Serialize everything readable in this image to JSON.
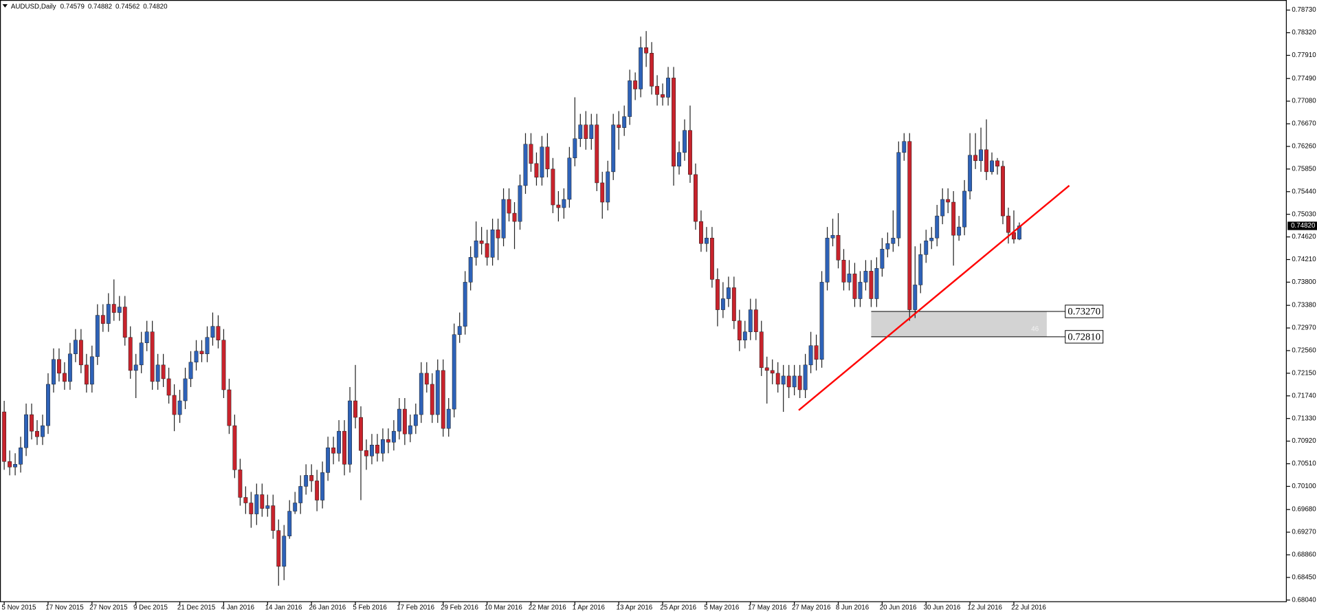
{
  "chart_data": {
    "type": "candlestick",
    "title": "AUDUSD,Daily",
    "quote": [
      0.74579,
      0.74882,
      0.74562,
      {
        "value": 0.7482,
        "label": "0.74820"
      }
    ],
    "up_color": "#2e62b8",
    "down_color": "#c8232c",
    "ylim": [
      0.6801,
      0.78867
    ],
    "yticks": [
      {
        "value": 0.7873,
        "label": "0.78730"
      },
      {
        "value": 0.7832,
        "label": "0.78320"
      },
      {
        "value": 0.7791,
        "label": "0.77910"
      },
      {
        "value": 0.7749,
        "label": "0.77490"
      },
      {
        "value": 0.7708,
        "label": "0.77080"
      },
      {
        "value": 0.7667,
        "label": "0.76670"
      },
      {
        "value": 0.7626,
        "label": "0.76260"
      },
      {
        "value": 0.7585,
        "label": "0.75850"
      },
      {
        "value": 0.7544,
        "label": "0.75440"
      },
      {
        "value": 0.7503,
        "label": "0.75030"
      },
      {
        "value": 0.7462,
        "label": "0.74620"
      },
      {
        "value": 0.7421,
        "label": "0.74210"
      },
      {
        "value": 0.738,
        "label": "0.73800"
      },
      {
        "value": 0.7338,
        "label": "0.73380"
      },
      {
        "value": 0.7297,
        "label": "0.72970"
      },
      {
        "value": 0.7256,
        "label": "0.72560"
      },
      {
        "value": 0.7215,
        "label": "0.72150"
      },
      {
        "value": 0.7174,
        "label": "0.71740"
      },
      {
        "value": 0.7133,
        "label": "0.71330"
      },
      {
        "value": 0.7092,
        "label": "0.70920"
      },
      {
        "value": 0.7051,
        "label": "0.70510"
      },
      {
        "value": 0.701,
        "label": "0.70100"
      },
      {
        "value": 0.6968,
        "label": "0.69680"
      },
      {
        "value": 0.6927,
        "label": "0.69270"
      },
      {
        "value": 0.6886,
        "label": "0.68860"
      },
      {
        "value": 0.6845,
        "label": "0.68450"
      },
      {
        "value": 0.6804,
        "label": "0.68040"
      }
    ],
    "categories": [
      "5 Nov 2015",
      null,
      null,
      null,
      null,
      null,
      null,
      null,
      "17 Nov 2015",
      null,
      null,
      null,
      null,
      null,
      null,
      null,
      "27 Nov 2015",
      null,
      null,
      null,
      null,
      null,
      null,
      null,
      "9 Dec 2015",
      null,
      null,
      null,
      null,
      null,
      null,
      null,
      "21 Dec 2015",
      null,
      null,
      null,
      null,
      null,
      null,
      null,
      "4 Jan 2016",
      null,
      null,
      null,
      null,
      null,
      null,
      null,
      "14 Jan 2016",
      null,
      null,
      null,
      null,
      null,
      null,
      null,
      "26 Jan 2016",
      null,
      null,
      null,
      null,
      null,
      null,
      null,
      "5 Feb 2016",
      null,
      null,
      null,
      null,
      null,
      null,
      null,
      "17 Feb 2016",
      null,
      null,
      null,
      null,
      null,
      null,
      null,
      "29 Feb 2016",
      null,
      null,
      null,
      null,
      null,
      null,
      null,
      "10 Mar 2016",
      null,
      null,
      null,
      null,
      null,
      null,
      null,
      "22 Mar 2016",
      null,
      null,
      null,
      null,
      null,
      null,
      null,
      "1 Apr 2016",
      null,
      null,
      null,
      null,
      null,
      null,
      null,
      "13 Apr 2016",
      null,
      null,
      null,
      null,
      null,
      null,
      null,
      "25 Apr 2016",
      null,
      null,
      null,
      null,
      null,
      null,
      null,
      "5 May 2016",
      null,
      null,
      null,
      null,
      null,
      null,
      null,
      "17 May 2016",
      null,
      null,
      null,
      null,
      null,
      null,
      null,
      "27 May 2016",
      null,
      null,
      null,
      null,
      null,
      null,
      null,
      "8 Jun 2016",
      null,
      null,
      null,
      null,
      null,
      null,
      null,
      "20 Jun 2016",
      null,
      null,
      null,
      null,
      null,
      null,
      null,
      "30 Jun 2016",
      null,
      null,
      null,
      null,
      null,
      null,
      null,
      "12 Jul 2016",
      null,
      null,
      null,
      null,
      null,
      null,
      null,
      "22 Jul 2016",
      null
    ],
    "open": [
      0.7145,
      0.7055,
      0.7045,
      0.705,
      0.708,
      0.714,
      0.711,
      0.71,
      0.712,
      0.7195,
      0.724,
      0.7215,
      0.72,
      0.725,
      0.7275,
      0.723,
      0.7195,
      0.7245,
      0.732,
      0.7305,
      0.734,
      0.7325,
      0.7335,
      0.728,
      0.722,
      0.723,
      0.727,
      0.729,
      0.72,
      0.723,
      0.7205,
      0.7175,
      0.714,
      0.7165,
      0.7205,
      0.7235,
      0.7255,
      0.725,
      0.728,
      0.73,
      0.7275,
      0.7185,
      0.712,
      0.704,
      0.699,
      0.698,
      0.696,
      0.6995,
      0.697,
      0.6975,
      0.693,
      0.6865,
      0.692,
      0.6965,
      0.698,
      0.701,
      0.703,
      0.702,
      0.6985,
      0.7035,
      0.708,
      0.707,
      0.711,
      0.705,
      0.7165,
      0.7135,
      0.7075,
      0.7065,
      0.7085,
      0.707,
      0.7095,
      0.709,
      0.711,
      0.715,
      0.7105,
      0.712,
      0.714,
      0.7215,
      0.7195,
      0.714,
      0.722,
      0.7115,
      0.715,
      0.7285,
      0.73,
      0.738,
      0.7425,
      0.7455,
      0.745,
      0.7425,
      0.7475,
      0.746,
      0.753,
      0.7505,
      0.749,
      0.7555,
      0.763,
      0.7595,
      0.757,
      0.7625,
      0.7585,
      0.752,
      0.7515,
      0.753,
      0.7605,
      0.764,
      0.7665,
      0.764,
      0.7665,
      0.756,
      0.7525,
      0.758,
      0.7665,
      0.766,
      0.768,
      0.7745,
      0.773,
      0.7805,
      0.7795,
      0.7735,
      0.772,
      0.7715,
      0.775,
      0.759,
      0.7615,
      0.7655,
      0.7575,
      0.749,
      0.745,
      0.746,
      0.7385,
      0.733,
      0.735,
      0.737,
      0.731,
      0.7275,
      0.729,
      0.733,
      0.729,
      0.7225,
      0.722,
      0.7215,
      0.7195,
      0.721,
      0.719,
      0.721,
      0.7185,
      0.723,
      0.7265,
      0.724,
      0.738,
      0.746,
      0.7465,
      0.742,
      0.738,
      0.7395,
      0.735,
      0.738,
      0.74,
      0.735,
      0.7405,
      0.744,
      0.745,
      0.746,
      0.7615,
      0.7635,
      0.733,
      0.7375,
      0.743,
      0.7455,
      0.746,
      0.75,
      0.753,
      0.7525,
      0.7465,
      0.748,
      0.7545,
      0.761,
      0.76,
      0.762,
      0.758,
      0.76,
      0.759,
      0.75,
      0.747,
      0.74579
    ],
    "high": [
      0.7165,
      0.7075,
      0.707,
      0.71,
      0.716,
      0.716,
      0.713,
      0.714,
      0.7215,
      0.726,
      0.726,
      0.7235,
      0.727,
      0.7295,
      0.7295,
      0.725,
      0.7265,
      0.734,
      0.734,
      0.736,
      0.7385,
      0.7355,
      0.7355,
      0.73,
      0.725,
      0.729,
      0.731,
      0.731,
      0.725,
      0.725,
      0.7225,
      0.7195,
      0.7185,
      0.7225,
      0.7255,
      0.7275,
      0.7275,
      0.73,
      0.7325,
      0.732,
      0.7295,
      0.7205,
      0.714,
      0.706,
      0.701,
      0.7,
      0.7015,
      0.7015,
      0.6995,
      0.6995,
      0.695,
      0.694,
      0.6985,
      0.7,
      0.703,
      0.705,
      0.705,
      0.704,
      0.7055,
      0.71,
      0.71,
      0.713,
      0.713,
      0.719,
      0.723,
      0.7155,
      0.7095,
      0.7105,
      0.7105,
      0.7115,
      0.7115,
      0.713,
      0.717,
      0.717,
      0.714,
      0.716,
      0.7235,
      0.7235,
      0.7215,
      0.724,
      0.724,
      0.717,
      0.7305,
      0.7325,
      0.74,
      0.7445,
      0.749,
      0.748,
      0.7475,
      0.7495,
      0.7495,
      0.755,
      0.755,
      0.7525,
      0.7575,
      0.765,
      0.765,
      0.7615,
      0.7645,
      0.765,
      0.7605,
      0.7545,
      0.755,
      0.7625,
      0.7715,
      0.7685,
      0.769,
      0.7685,
      0.7685,
      0.758,
      0.76,
      0.7685,
      0.769,
      0.77,
      0.7765,
      0.776,
      0.7825,
      0.7835,
      0.7815,
      0.7755,
      0.774,
      0.777,
      0.777,
      0.7635,
      0.7675,
      0.77,
      0.7595,
      0.751,
      0.748,
      0.748,
      0.7405,
      0.738,
      0.739,
      0.739,
      0.733,
      0.731,
      0.735,
      0.735,
      0.731,
      0.7245,
      0.724,
      0.7235,
      0.723,
      0.723,
      0.723,
      0.723,
      0.725,
      0.729,
      0.7285,
      0.74,
      0.748,
      0.7495,
      0.7505,
      0.744,
      0.742,
      0.7415,
      0.74,
      0.742,
      0.742,
      0.7425,
      0.746,
      0.747,
      0.751,
      0.7635,
      0.765,
      0.765,
      0.7445,
      0.745,
      0.7475,
      0.748,
      0.752,
      0.755,
      0.755,
      0.7545,
      0.75,
      0.7565,
      0.765,
      0.765,
      0.766,
      0.7675,
      0.7615,
      0.7605,
      0.76,
      0.7515,
      0.751,
      0.74882
    ],
    "low": [
      0.704,
      0.703,
      0.703,
      0.7035,
      0.7065,
      0.7095,
      0.7085,
      0.7085,
      0.7105,
      0.718,
      0.72,
      0.7185,
      0.7185,
      0.7235,
      0.7215,
      0.718,
      0.718,
      0.723,
      0.729,
      0.729,
      0.731,
      0.731,
      0.7265,
      0.7205,
      0.717,
      0.7215,
      0.7255,
      0.7185,
      0.7185,
      0.719,
      0.716,
      0.711,
      0.7125,
      0.715,
      0.719,
      0.722,
      0.7235,
      0.7235,
      0.7265,
      0.726,
      0.717,
      0.7105,
      0.7025,
      0.6975,
      0.696,
      0.6935,
      0.694,
      0.6955,
      0.6955,
      0.6915,
      0.683,
      0.684,
      0.6915,
      0.696,
      0.696,
      0.6995,
      0.7,
      0.6965,
      0.697,
      0.702,
      0.705,
      0.7055,
      0.703,
      0.7035,
      0.7115,
      0.6985,
      0.704,
      0.705,
      0.7055,
      0.7055,
      0.707,
      0.7075,
      0.7095,
      0.7085,
      0.709,
      0.7105,
      0.7125,
      0.718,
      0.7125,
      0.7125,
      0.71,
      0.71,
      0.7135,
      0.727,
      0.7285,
      0.7365,
      0.741,
      0.743,
      0.741,
      0.741,
      0.742,
      0.7445,
      0.749,
      0.744,
      0.7475,
      0.754,
      0.758,
      0.7555,
      0.7555,
      0.757,
      0.7505,
      0.749,
      0.7495,
      0.7515,
      0.759,
      0.7625,
      0.762,
      0.762,
      0.7545,
      0.7495,
      0.751,
      0.7565,
      0.762,
      0.7645,
      0.7665,
      0.771,
      0.7715,
      0.777,
      0.772,
      0.77,
      0.77,
      0.77,
      0.7555,
      0.7575,
      0.76,
      0.756,
      0.7475,
      0.7435,
      0.7435,
      0.737,
      0.73,
      0.7315,
      0.7335,
      0.7295,
      0.7255,
      0.726,
      0.7275,
      0.7275,
      0.721,
      0.716,
      0.7195,
      0.718,
      0.7145,
      0.717,
      0.7175,
      0.717,
      0.717,
      0.7215,
      0.722,
      0.7225,
      0.7365,
      0.7445,
      0.7405,
      0.7365,
      0.7365,
      0.7335,
      0.7335,
      0.7365,
      0.7335,
      0.7335,
      0.739,
      0.7425,
      0.7435,
      0.7445,
      0.76,
      0.731,
      0.7315,
      0.736,
      0.7415,
      0.744,
      0.7445,
      0.7485,
      0.7505,
      0.741,
      0.7455,
      0.7465,
      0.753,
      0.7585,
      0.758,
      0.7565,
      0.7575,
      0.7575,
      0.7485,
      0.745,
      0.745,
      0.74562
    ],
    "close": [
      0.7055,
      0.7045,
      0.705,
      0.708,
      0.714,
      0.711,
      0.71,
      0.712,
      0.7195,
      0.724,
      0.7215,
      0.72,
      0.725,
      0.7275,
      0.723,
      0.7195,
      0.7245,
      0.732,
      0.7305,
      0.734,
      0.7325,
      0.7335,
      0.728,
      0.722,
      0.723,
      0.727,
      0.729,
      0.72,
      0.723,
      0.7205,
      0.7175,
      0.714,
      0.7165,
      0.7205,
      0.7235,
      0.7255,
      0.725,
      0.728,
      0.73,
      0.7275,
      0.7185,
      0.712,
      0.704,
      0.699,
      0.698,
      0.696,
      0.6995,
      0.697,
      0.6975,
      0.693,
      0.6865,
      0.692,
      0.6965,
      0.698,
      0.701,
      0.703,
      0.702,
      0.6985,
      0.7035,
      0.708,
      0.707,
      0.711,
      0.705,
      0.7165,
      0.7135,
      0.7075,
      0.7065,
      0.7085,
      0.707,
      0.7095,
      0.709,
      0.711,
      0.715,
      0.7105,
      0.712,
      0.714,
      0.7215,
      0.7195,
      0.714,
      0.722,
      0.7115,
      0.715,
      0.7285,
      0.73,
      0.738,
      0.7425,
      0.7455,
      0.745,
      0.7425,
      0.7475,
      0.746,
      0.753,
      0.7505,
      0.749,
      0.7555,
      0.763,
      0.7595,
      0.757,
      0.7625,
      0.7585,
      0.752,
      0.7515,
      0.753,
      0.7605,
      0.764,
      0.7665,
      0.764,
      0.7665,
      0.756,
      0.7525,
      0.758,
      0.7665,
      0.766,
      0.768,
      0.7745,
      0.773,
      0.7805,
      0.7795,
      0.7735,
      0.772,
      0.7715,
      0.775,
      0.759,
      0.7615,
      0.7655,
      0.7575,
      0.749,
      0.745,
      0.746,
      0.7385,
      0.733,
      0.735,
      0.737,
      0.731,
      0.7275,
      0.729,
      0.733,
      0.729,
      0.7225,
      0.722,
      0.7215,
      0.7195,
      0.721,
      0.719,
      0.721,
      0.7185,
      0.723,
      0.7265,
      0.724,
      0.738,
      0.746,
      0.7465,
      0.742,
      0.738,
      0.7395,
      0.735,
      0.738,
      0.74,
      0.735,
      0.7405,
      0.744,
      0.745,
      0.746,
      0.7615,
      0.7635,
      0.733,
      0.7375,
      0.743,
      0.7455,
      0.746,
      0.75,
      0.753,
      0.7525,
      0.7465,
      0.748,
      0.7545,
      0.761,
      0.76,
      0.762,
      0.758,
      0.76,
      0.759,
      0.75,
      0.747,
      0.74579,
      0.7482
    ],
    "zone": {
      "levels": [
        {
          "value": 0.7327,
          "label": "0.73270"
        },
        {
          "value": 0.7281,
          "label": "0.72810"
        }
      ],
      "label": "46",
      "x": [
        158,
        190
      ],
      "color": "#d3d3d3"
    },
    "trendline": {
      "x": [
        144.8,
        194.1
      ],
      "y": [
        0.7148,
        0.7555
      ],
      "color": "#ff0000"
    }
  }
}
